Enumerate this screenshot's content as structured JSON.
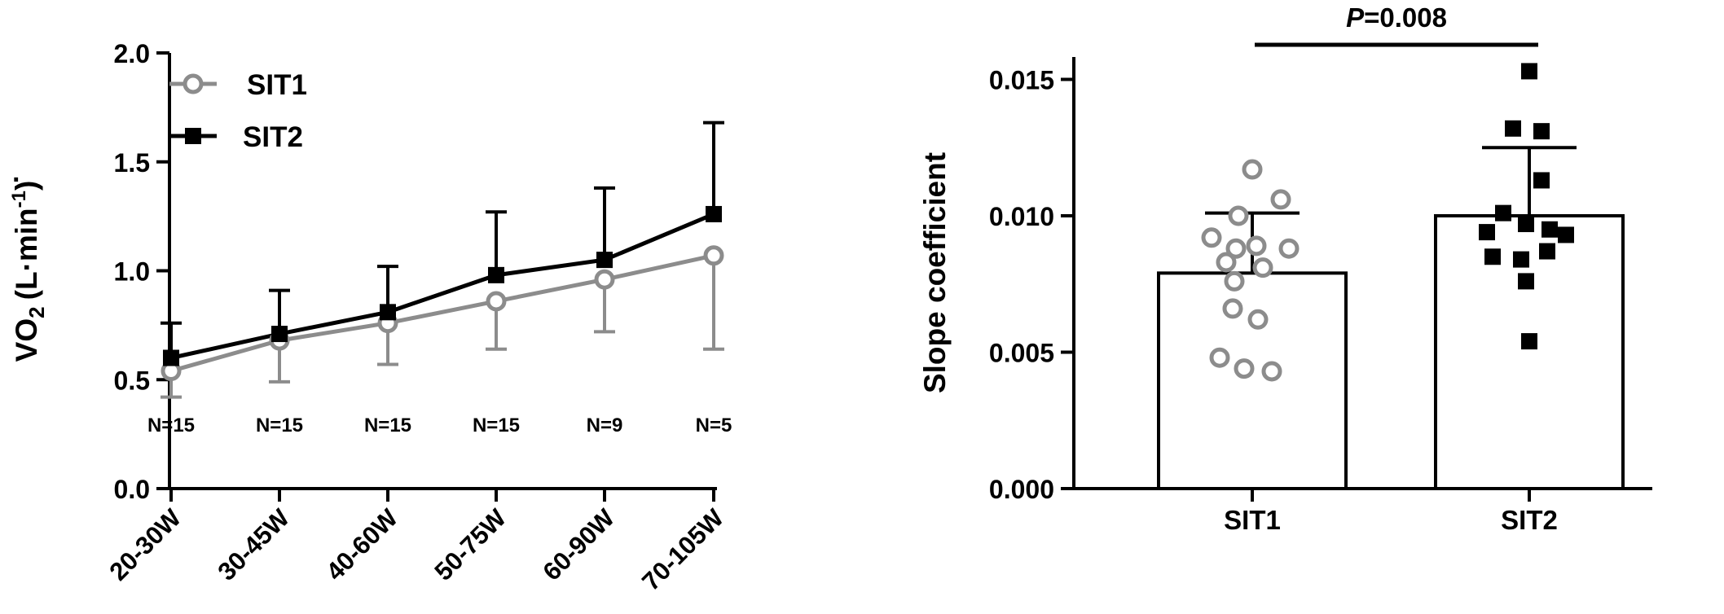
{
  "chart_data": [
    {
      "type": "line",
      "categories": [
        "20-30W",
        "30-45W",
        "40-60W",
        "50-75W",
        "60-90W",
        "70-105W"
      ],
      "n_labels": [
        "N=15",
        "N=15",
        "N=15",
        "N=15",
        "N=9",
        "N=5"
      ],
      "series": [
        {
          "name": "SIT1",
          "marker": "open-circle",
          "color": "#8c8c8c",
          "values": [
            0.54,
            0.68,
            0.76,
            0.86,
            0.96,
            1.07
          ],
          "sd": [
            0.12,
            0.19,
            0.19,
            0.22,
            0.24,
            0.43
          ],
          "error_direction": "down"
        },
        {
          "name": "SIT2",
          "marker": "filled-square",
          "color": "#000000",
          "values": [
            0.6,
            0.71,
            0.81,
            0.98,
            1.05,
            1.26
          ],
          "sd": [
            0.16,
            0.2,
            0.21,
            0.29,
            0.33,
            0.42
          ],
          "error_direction": "up"
        }
      ],
      "ylabel_main": "VO",
      "ylabel_sub": "2",
      "ylabel_rest": "(L·min",
      "ylabel_sup": "-1",
      "ylabel_close": ")",
      "ylim": [
        0.0,
        2.0
      ],
      "yticks": [
        0.0,
        0.5,
        1.0,
        1.5,
        2.0
      ],
      "ytick_labels": [
        "0.0",
        "0.5",
        "1.0",
        "1.5",
        "2.0"
      ]
    },
    {
      "type": "bar",
      "categories": [
        "SIT1",
        "SIT2"
      ],
      "values": [
        0.0079,
        0.01
      ],
      "sd": [
        0.0022,
        0.0025
      ],
      "points": [
        [
          0.0117,
          0.0106,
          0.01,
          0.0092,
          0.0088,
          0.0089,
          0.0088,
          0.0083,
          0.0081,
          0.0076,
          0.0066,
          0.0062,
          0.0048,
          0.0044,
          0.0043
        ],
        [
          0.0153,
          0.0132,
          0.0131,
          0.0113,
          0.0101,
          0.0097,
          0.0094,
          0.0095,
          0.0093,
          0.0085,
          0.0084,
          0.0087,
          0.0076,
          0.0054
        ]
      ],
      "point_markers": [
        "open-circle",
        "filled-square"
      ],
      "point_colors": [
        "#8c8c8c",
        "#000000"
      ],
      "ylabel": "Slope coefficient",
      "ylim": [
        0.0,
        0.016
      ],
      "yticks": [
        0.0,
        0.005,
        0.01,
        0.015
      ],
      "ytick_labels": [
        "0.000",
        "0.005",
        "0.010",
        "0.015"
      ],
      "annotation_italic": "P",
      "annotation_rest": "=0.008"
    }
  ]
}
